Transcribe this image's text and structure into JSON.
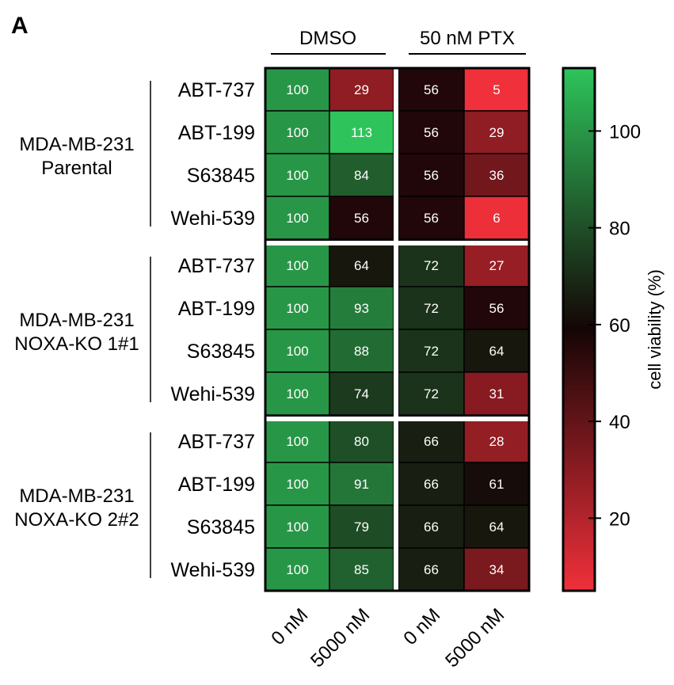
{
  "panel_label": "A",
  "chart_data": {
    "type": "heatmap",
    "panel": "A",
    "treatment_groups": [
      "DMSO",
      "50 nM PTX"
    ],
    "columns": [
      "0 nM",
      "5000 nM",
      "0 nM",
      "5000 nM"
    ],
    "row_groups": [
      {
        "name_lines": [
          "MDA-MB-231",
          "Parental"
        ],
        "rows": [
          {
            "drug": "ABT-737",
            "values": [
              100,
              29,
              56,
              5
            ]
          },
          {
            "drug": "ABT-199",
            "values": [
              100,
              113,
              56,
              29
            ]
          },
          {
            "drug": "S63845",
            "values": [
              100,
              84,
              56,
              36
            ]
          },
          {
            "drug": "Wehi-539",
            "values": [
              100,
              56,
              56,
              6
            ]
          }
        ]
      },
      {
        "name_lines": [
          "MDA-MB-231",
          "NOXA-KO 1#1"
        ],
        "rows": [
          {
            "drug": "ABT-737",
            "values": [
              100,
              64,
              72,
              27
            ]
          },
          {
            "drug": "ABT-199",
            "values": [
              100,
              93,
              72,
              56
            ]
          },
          {
            "drug": "S63845",
            "values": [
              100,
              88,
              72,
              64
            ]
          },
          {
            "drug": "Wehi-539",
            "values": [
              100,
              74,
              72,
              31
            ]
          }
        ]
      },
      {
        "name_lines": [
          "MDA-MB-231",
          "NOXA-KO 2#2"
        ],
        "rows": [
          {
            "drug": "ABT-737",
            "values": [
              100,
              80,
              66,
              28
            ]
          },
          {
            "drug": "ABT-199",
            "values": [
              100,
              91,
              66,
              61
            ]
          },
          {
            "drug": "S63845",
            "values": [
              100,
              79,
              66,
              64
            ]
          },
          {
            "drug": "Wehi-539",
            "values": [
              100,
              85,
              66,
              34
            ]
          }
        ]
      }
    ],
    "colorbar": {
      "label": "cell viability (%)",
      "range": [
        5,
        113
      ],
      "ticks": [
        20,
        40,
        60,
        80,
        100
      ],
      "colors": {
        "low": "#f0303a",
        "mid": "#150506",
        "high": "#2ec45b"
      }
    }
  }
}
